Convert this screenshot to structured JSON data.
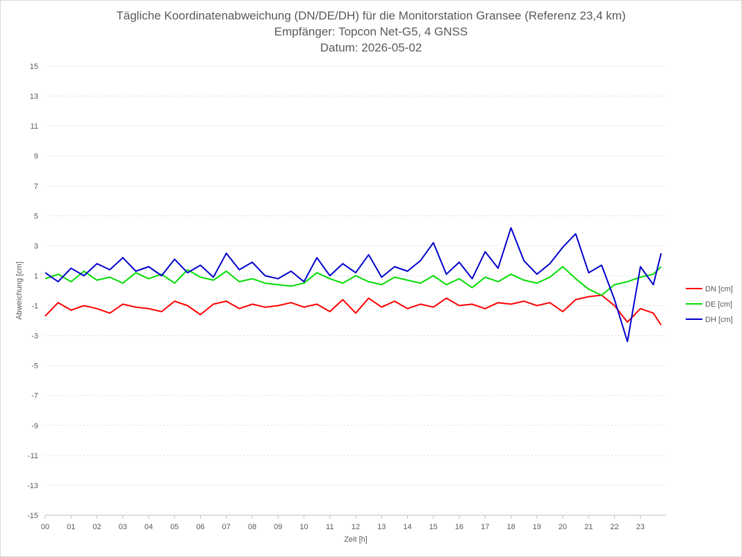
{
  "chart_data": {
    "type": "line",
    "title": "Tägliche Koordinatenabweichung (DN/DE/DH) für die Monitorstation Gransee (Referenz 23,4 km)",
    "subtitle": "Empfänger: Topcon Net-G5, 4 GNSS",
    "date_line": "Datum: 2026-05-02",
    "xlabel": "Zeit [h]",
    "ylabel": "Abweichung [cm]",
    "ylim": [
      -15,
      15
    ],
    "xlim": [
      0,
      24
    ],
    "x_ticks": [
      "00",
      "01",
      "02",
      "03",
      "04",
      "05",
      "06",
      "07",
      "08",
      "09",
      "10",
      "11",
      "12",
      "13",
      "14",
      "15",
      "16",
      "17",
      "18",
      "19",
      "20",
      "21",
      "22",
      "23"
    ],
    "y_ticks": [
      "15",
      "13",
      "11",
      "9",
      "7",
      "5",
      "3",
      "1",
      "-1",
      "-3",
      "-5",
      "-7",
      "-9",
      "-11",
      "-13",
      "-15"
    ],
    "grid": true,
    "legend_position": "right",
    "x_hours": [
      0,
      0.5,
      1,
      1.5,
      2,
      2.5,
      3,
      3.5,
      4,
      4.5,
      5,
      5.5,
      6,
      6.5,
      7,
      7.5,
      8,
      8.5,
      9,
      9.5,
      10,
      10.5,
      11,
      11.5,
      12,
      12.5,
      13,
      13.5,
      14,
      14.5,
      15,
      15.5,
      16,
      16.5,
      17,
      17.5,
      18,
      18.5,
      19,
      19.5,
      20,
      20.5,
      21,
      21.5,
      22,
      22.5,
      23,
      23.5,
      23.8
    ],
    "series": [
      {
        "name": "DN [cm]",
        "color": "#ff0000",
        "values": [
          -1.7,
          -0.8,
          -1.3,
          -1.0,
          -1.2,
          -1.5,
          -0.9,
          -1.1,
          -1.2,
          -1.4,
          -0.7,
          -1.0,
          -1.6,
          -0.9,
          -0.7,
          -1.2,
          -0.9,
          -1.1,
          -1.0,
          -0.8,
          -1.1,
          -0.9,
          -1.4,
          -0.6,
          -1.5,
          -0.5,
          -1.1,
          -0.7,
          -1.2,
          -0.9,
          -1.1,
          -0.5,
          -1.0,
          -0.9,
          -1.2,
          -0.8,
          -0.9,
          -0.7,
          -1.0,
          -0.8,
          -1.4,
          -0.6,
          -0.4,
          -0.3,
          -1.0,
          -2.1,
          -1.2,
          -1.5,
          -2.3
        ]
      },
      {
        "name": "DE [cm]",
        "color": "#00dd00",
        "values": [
          0.8,
          1.1,
          0.6,
          1.3,
          0.7,
          0.9,
          0.5,
          1.2,
          0.8,
          1.1,
          0.5,
          1.4,
          0.9,
          0.7,
          1.3,
          0.6,
          0.8,
          0.5,
          0.4,
          0.3,
          0.5,
          1.2,
          0.8,
          0.5,
          1.0,
          0.6,
          0.4,
          0.9,
          0.7,
          0.5,
          1.0,
          0.4,
          0.8,
          0.2,
          0.9,
          0.6,
          1.1,
          0.7,
          0.5,
          0.9,
          1.6,
          0.8,
          0.1,
          -0.3,
          0.4,
          0.6,
          0.9,
          1.1,
          1.6
        ]
      },
      {
        "name": "DH [cm]",
        "color": "#0000cc",
        "values": [
          1.2,
          0.6,
          1.5,
          1.0,
          1.8,
          1.4,
          2.2,
          1.3,
          1.6,
          1.0,
          2.1,
          1.2,
          1.7,
          0.9,
          2.5,
          1.4,
          1.9,
          1.0,
          0.8,
          1.3,
          0.6,
          2.2,
          1.0,
          1.8,
          1.2,
          2.4,
          0.9,
          1.6,
          1.3,
          2.0,
          3.2,
          1.1,
          1.9,
          0.8,
          2.6,
          1.5,
          4.2,
          2.0,
          1.1,
          1.8,
          2.9,
          3.8,
          1.2,
          1.7,
          -0.6,
          -3.4,
          1.6,
          0.4,
          2.5
        ]
      }
    ]
  }
}
